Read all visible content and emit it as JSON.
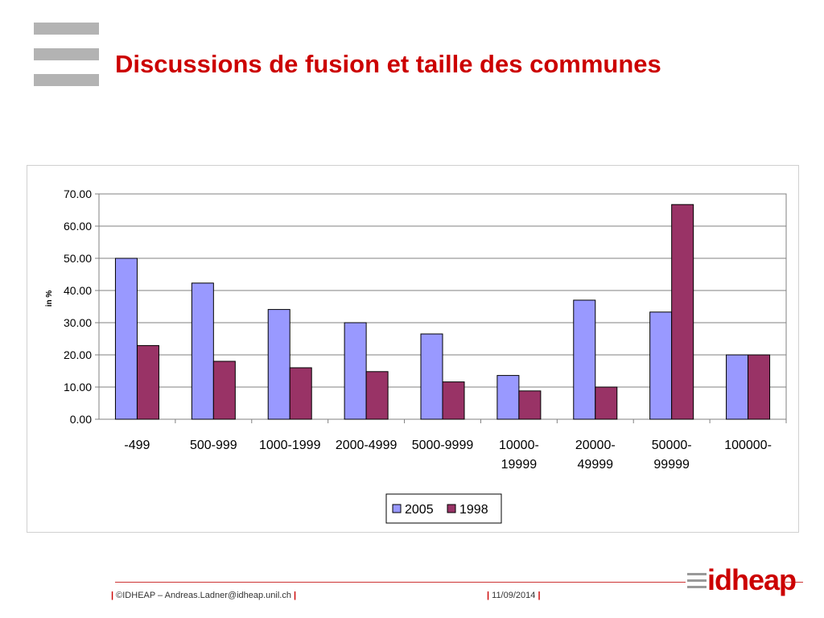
{
  "slide": {
    "title": "Discussions de fusion et taille des communes"
  },
  "footer": {
    "sep": "|",
    "credit": "©IDHEAP – Andreas.Ladner@idheap.unil.ch",
    "date": "11/09/2014",
    "logo_text": "idheap"
  },
  "icons": {
    "menu": "hamburger-menu-icon",
    "logo": "idheap-logo"
  },
  "colors": {
    "title": "#cc0000",
    "series_2005": "#9999ff",
    "series_1998": "#993366",
    "plot_background": "#ffffff",
    "gridline": "#808080"
  },
  "chart_data": {
    "type": "bar",
    "title": "",
    "xlabel": "",
    "ylabel": "in %",
    "ylim": [
      0,
      70
    ],
    "yticks": [
      "0.00",
      "10.00",
      "20.00",
      "30.00",
      "40.00",
      "50.00",
      "60.00",
      "70.00"
    ],
    "categories": [
      [
        "-499"
      ],
      [
        "500-999"
      ],
      [
        "1000-1999"
      ],
      [
        "2000-4999"
      ],
      [
        "5000-9999"
      ],
      [
        "10000-",
        "19999"
      ],
      [
        "20000-",
        "49999"
      ],
      [
        "50000-",
        "99999"
      ],
      [
        "100000-"
      ]
    ],
    "series": [
      {
        "name": "2005",
        "color": "#9999ff",
        "values": [
          50.0,
          42.3,
          34.1,
          30.0,
          26.5,
          13.6,
          37.0,
          33.3,
          20.0
        ]
      },
      {
        "name": "1998",
        "color": "#993366",
        "values": [
          22.9,
          18.0,
          16.0,
          14.8,
          11.6,
          8.8,
          10.0,
          66.7,
          20.0
        ]
      }
    ],
    "grid": true,
    "legend_position": "bottom-center"
  }
}
